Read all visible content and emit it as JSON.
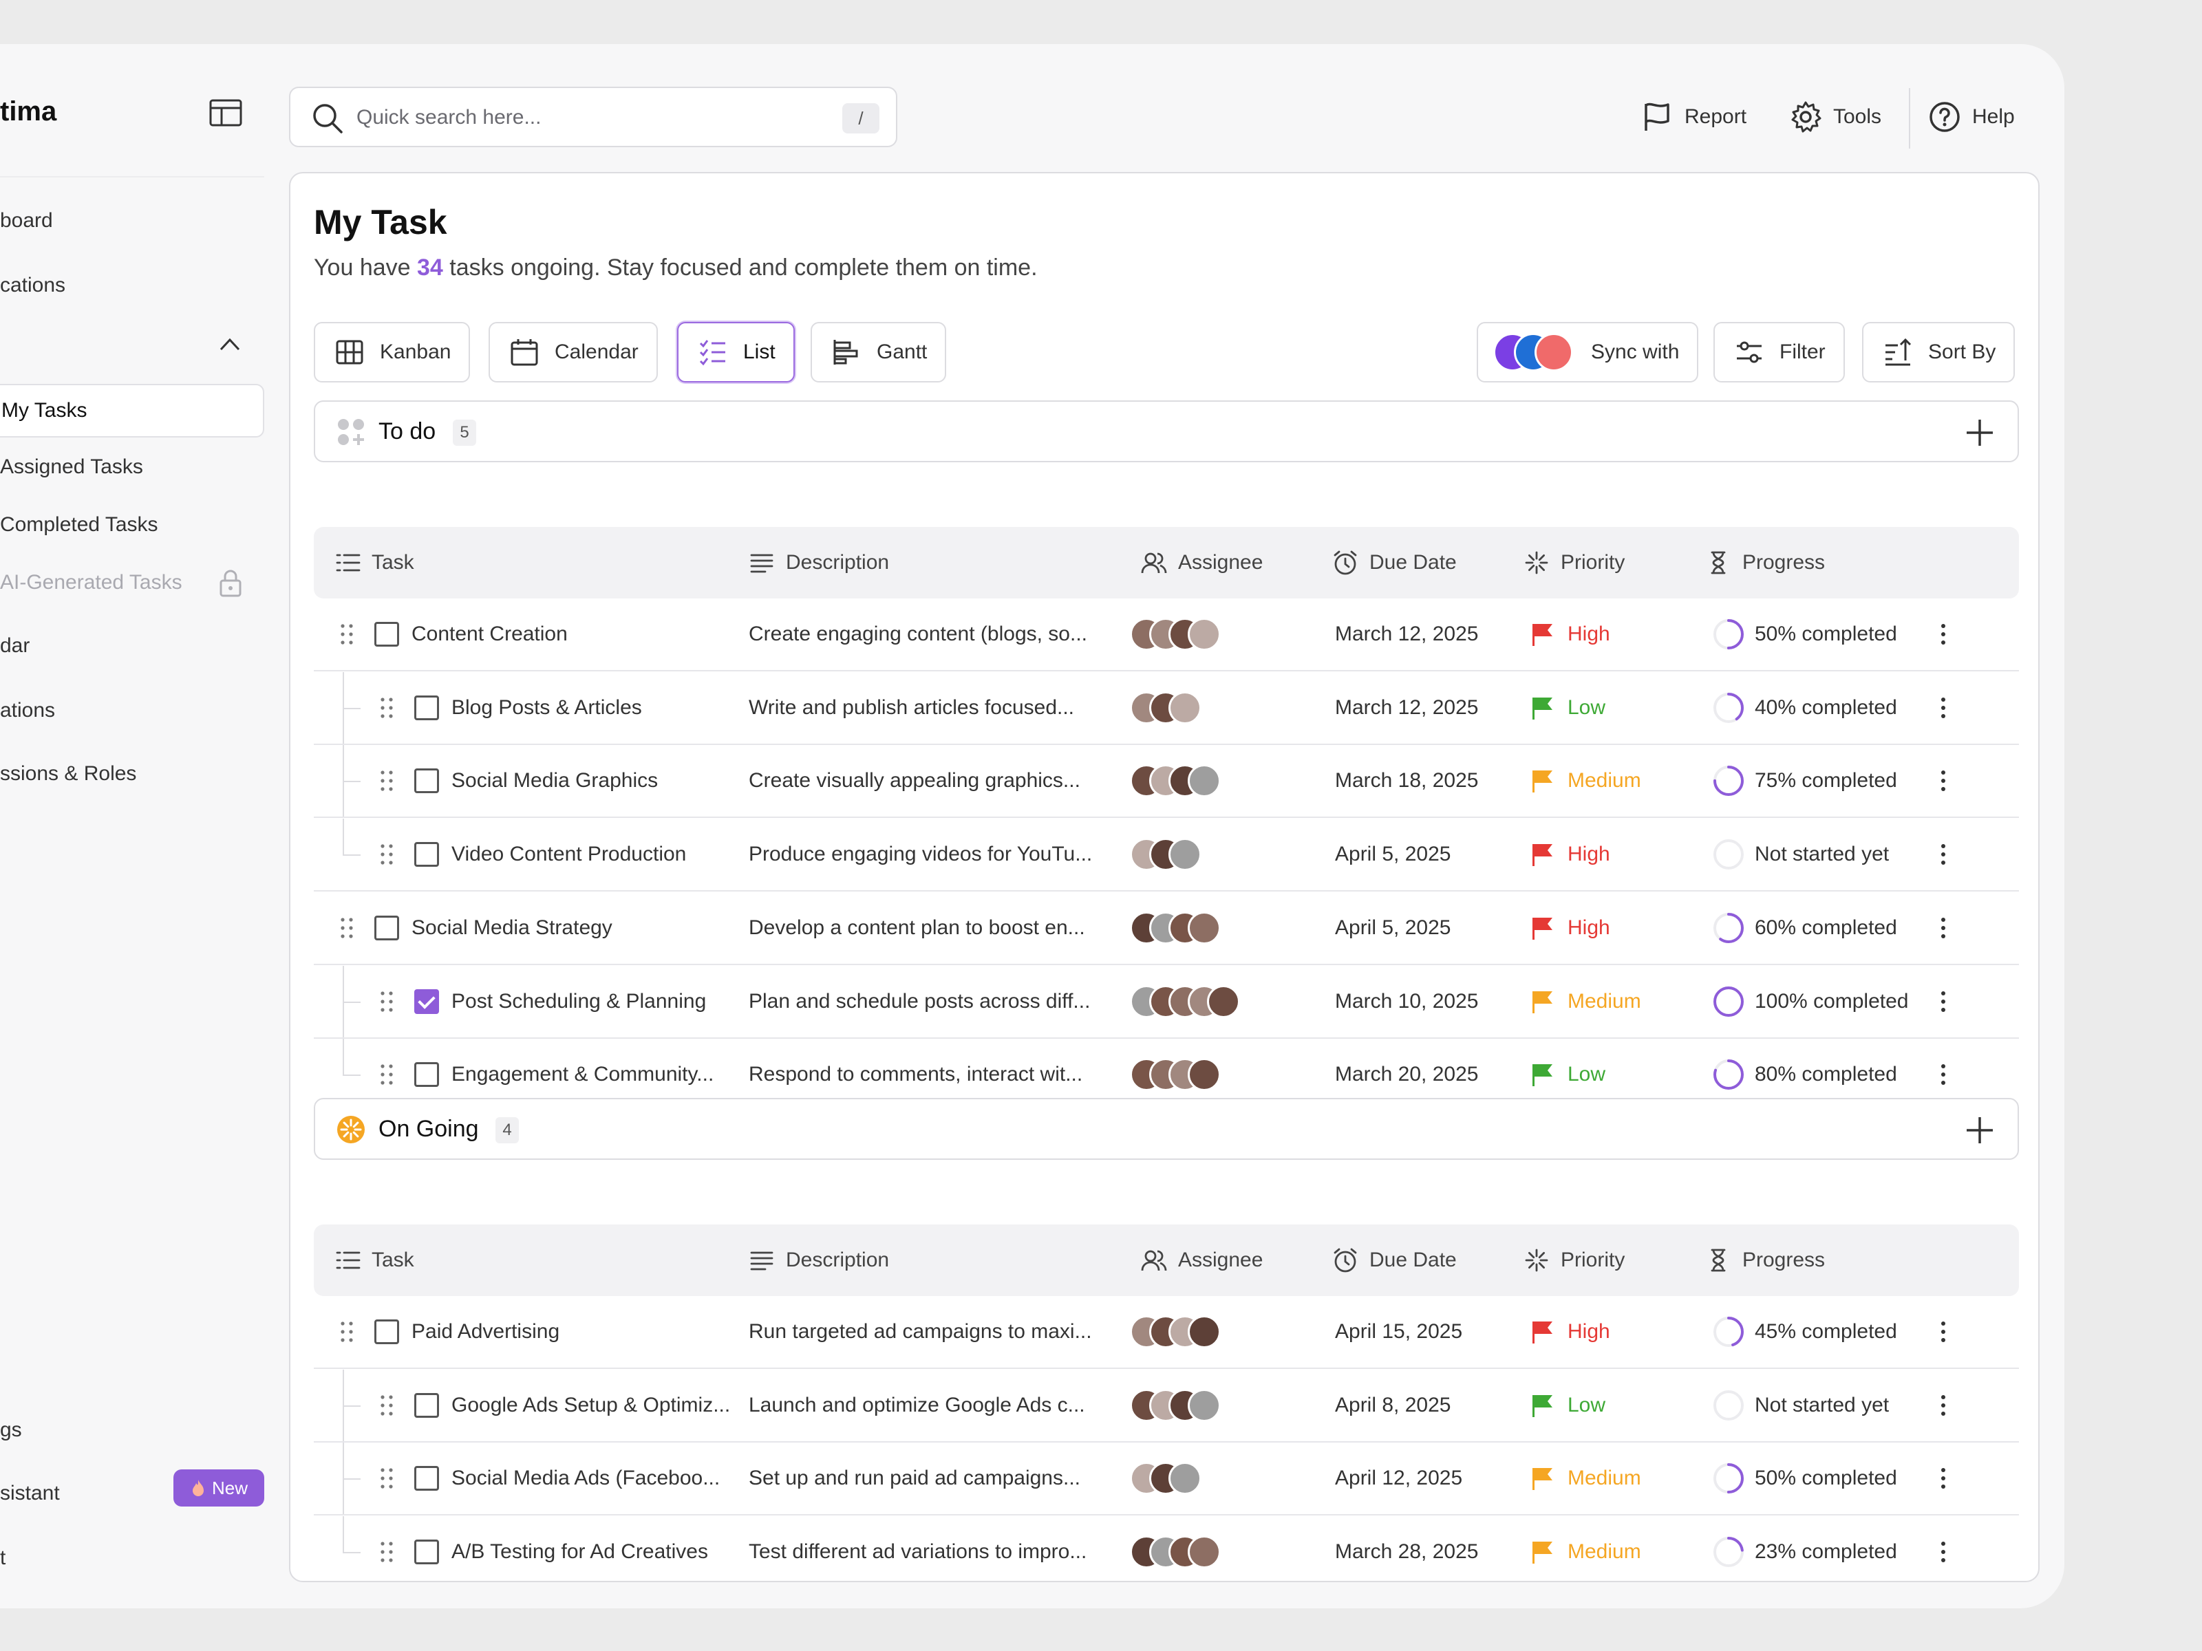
{
  "sidebar": {
    "brand": "tima",
    "items": [
      {
        "label": "board",
        "top": 0
      },
      {
        "label": "cations"
      },
      {
        "label": "My Tasks"
      },
      {
        "label": "Assigned Tasks"
      },
      {
        "label": "Completed Tasks"
      },
      {
        "label": "AI-Generated Tasks"
      },
      {
        "label": "dar"
      },
      {
        "label": "ations"
      },
      {
        "label": "ssions & Roles"
      },
      {
        "label": "gs"
      },
      {
        "label": "sistant"
      },
      {
        "label": "t"
      }
    ],
    "new_badge": "New"
  },
  "header": {
    "search_placeholder": "Quick search here...",
    "search_shortcut": "/",
    "report": "Report",
    "tools": "Tools",
    "help": "Help"
  },
  "page": {
    "title": "My Task",
    "subtitle_pre": "You have ",
    "subtitle_count": "34",
    "subtitle_post": " tasks ongoing. Stay focused and complete them on time."
  },
  "views": {
    "kanban": "Kanban",
    "calendar": "Calendar",
    "list": "List",
    "gantt": "Gantt",
    "active": "List"
  },
  "actions": {
    "sync": "Sync with",
    "filter": "Filter",
    "sort": "Sort By"
  },
  "columns": {
    "task": "Task",
    "description": "Description",
    "assignee": "Assignee",
    "due": "Due Date",
    "priority": "Priority",
    "progress": "Progress"
  },
  "colors": {
    "accent": "#8e5cd9",
    "high": "#e53935",
    "low": "#3ea935",
    "medium": "#f5a623",
    "ongoing": "#f5a623"
  },
  "sections": [
    {
      "title": "To do",
      "count": "5",
      "rows": [
        {
          "task": "Content Creation",
          "description": "Create engaging content (blogs, so...",
          "due": "March 12, 2025",
          "priority": "High",
          "progress": "50% completed",
          "pct": 0.5,
          "sub": false,
          "checked": false,
          "avatars": 4
        },
        {
          "task": "Blog Posts & Articles",
          "description": "Write and publish articles focused...",
          "due": "March 12, 2025",
          "priority": "Low",
          "progress": "40% completed",
          "pct": 0.4,
          "sub": true,
          "checked": false,
          "avatars": 3
        },
        {
          "task": "Social Media Graphics",
          "description": "Create visually appealing graphics...",
          "due": "March 18, 2025",
          "priority": "Medium",
          "progress": "75% completed",
          "pct": 0.75,
          "sub": true,
          "checked": false,
          "avatars": 4
        },
        {
          "task": "Video Content Production",
          "description": "Produce engaging videos for YouTu...",
          "due": "April 5, 2025",
          "priority": "High",
          "progress": "Not started yet",
          "pct": 0,
          "sub": true,
          "last": true,
          "checked": false,
          "avatars": 3
        },
        {
          "task": "Social Media Strategy",
          "description": "Develop a content plan to boost en...",
          "due": "April 5, 2025",
          "priority": "High",
          "progress": "60% completed",
          "pct": 0.6,
          "sub": false,
          "checked": false,
          "avatars": 4
        },
        {
          "task": "Post Scheduling & Planning",
          "description": "Plan and schedule posts across diff...",
          "due": "March 10, 2025",
          "priority": "Medium",
          "progress": "100% completed",
          "pct": 1,
          "sub": true,
          "checked": true,
          "avatars": 5
        },
        {
          "task": "Engagement & Community...",
          "description": "Respond to comments, interact wit...",
          "due": "March 20, 2025",
          "priority": "Low",
          "progress": "80% completed",
          "pct": 0.8,
          "sub": true,
          "last": true,
          "checked": false,
          "avatars": 4
        }
      ]
    },
    {
      "title": "On Going",
      "count": "4",
      "rows": [
        {
          "task": "Paid Advertising",
          "description": "Run targeted ad campaigns to maxi...",
          "due": "April 15, 2025",
          "priority": "High",
          "progress": "45% completed",
          "pct": 0.45,
          "sub": false,
          "checked": false,
          "avatars": 4
        },
        {
          "task": "Google Ads Setup & Optimiz...",
          "description": "Launch and optimize Google Ads c...",
          "due": "April 8, 2025",
          "priority": "Low",
          "progress": "Not started yet",
          "pct": 0,
          "sub": true,
          "checked": false,
          "avatars": 4
        },
        {
          "task": "Social Media Ads (Faceboo...",
          "description": "Set up and run paid ad campaigns...",
          "due": "April 12, 2025",
          "priority": "Medium",
          "progress": "50% completed",
          "pct": 0.5,
          "sub": true,
          "checked": false,
          "avatars": 3
        },
        {
          "task": "A/B Testing for Ad Creatives",
          "description": "Test different ad variations to impro...",
          "due": "March 28, 2025",
          "priority": "Medium",
          "progress": "23% completed",
          "pct": 0.23,
          "sub": true,
          "last": true,
          "checked": false,
          "avatars": 4
        }
      ]
    }
  ]
}
